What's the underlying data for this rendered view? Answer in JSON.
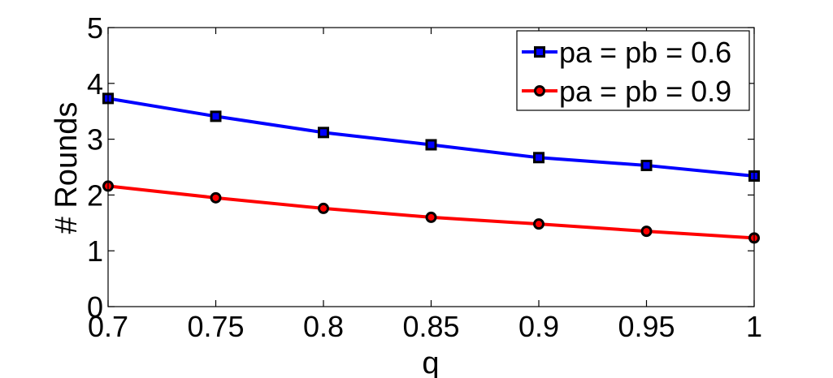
{
  "chart_data": {
    "type": "line",
    "title": "",
    "xlabel": "q",
    "ylabel": "# Rounds",
    "x": [
      0.7,
      0.75,
      0.8,
      0.85,
      0.9,
      0.95,
      1
    ],
    "x_tick_labels": [
      "0.7",
      "0.75",
      "0.8",
      "0.85",
      "0.9",
      "0.95",
      "1"
    ],
    "y_ticks": [
      0,
      1,
      2,
      3,
      4,
      5
    ],
    "y_tick_labels": [
      "0",
      "1",
      "2",
      "3",
      "4",
      "5"
    ],
    "xlim": [
      0.7,
      1
    ],
    "ylim": [
      0,
      5
    ],
    "grid": false,
    "legend_position": "top-right",
    "series": [
      {
        "name": "pa = pb = 0.6",
        "color": "#0000ff",
        "marker": "square",
        "values": [
          3.73,
          3.41,
          3.12,
          2.9,
          2.67,
          2.53,
          2.34
        ]
      },
      {
        "name": "pa = pb = 0.9",
        "color": "#ff0000",
        "marker": "circle",
        "values": [
          2.16,
          1.95,
          1.76,
          1.6,
          1.48,
          1.35,
          1.23
        ]
      }
    ]
  }
}
